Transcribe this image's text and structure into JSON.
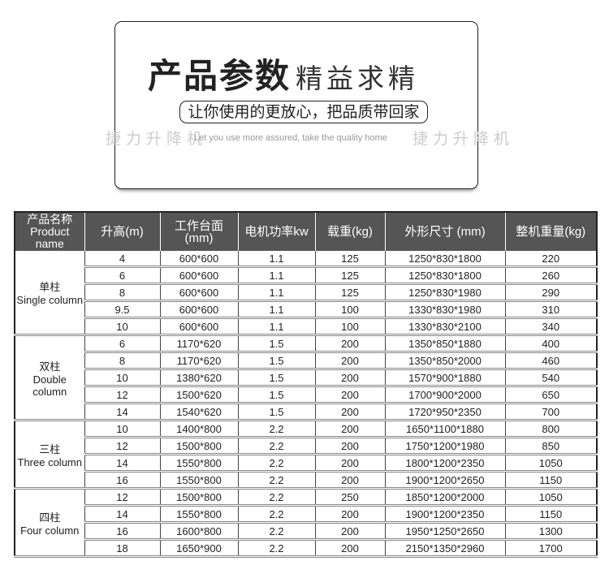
{
  "banner": {
    "title_bold": "产品参数",
    "title_light": "精益求精",
    "slogan": "让你使用的更放心，把品质带回家",
    "slogan_en": "Let you use more assured, take the quality home",
    "watermark": "捷力升降机"
  },
  "table": {
    "headers": {
      "name_cn": "产品名称",
      "name_en": "Product name",
      "height": "升高(m)",
      "platform": "工作台面(mm)",
      "power": "电机功率kw",
      "load": "载重(kg)",
      "size": "外形尺寸 (mm)",
      "weight": "整机重量(kg)"
    },
    "groups": [
      {
        "name_cn": "单柱",
        "name_en": "Single column",
        "rows": [
          [
            "4",
            "600*600",
            "1.1",
            "125",
            "1250*830*1800",
            "220"
          ],
          [
            "6",
            "600*600",
            "1.1",
            "125",
            "1250*830*1800",
            "260"
          ],
          [
            "8",
            "600*600",
            "1.1",
            "125",
            "1250*830*1980",
            "290"
          ],
          [
            "9.5",
            "600*600",
            "1.1",
            "100",
            "1330*830*1980",
            "310"
          ],
          [
            "10",
            "600*600",
            "1.1",
            "100",
            "1330*830*2100",
            "340"
          ]
        ]
      },
      {
        "name_cn": "双柱",
        "name_en": "Double column",
        "rows": [
          [
            "6",
            "1170*620",
            "1.5",
            "200",
            "1350*850*1880",
            "400"
          ],
          [
            "8",
            "1170*620",
            "1.5",
            "200",
            "1350*850*2000",
            "460"
          ],
          [
            "10",
            "1380*620",
            "1.5",
            "200",
            "1570*900*1880",
            "540"
          ],
          [
            "12",
            "1500*620",
            "1.5",
            "200",
            "1700*900*2000",
            "650"
          ],
          [
            "14",
            "1540*620",
            "1.5",
            "200",
            "1720*950*2350",
            "700"
          ]
        ]
      },
      {
        "name_cn": "三柱",
        "name_en": "Three column",
        "rows": [
          [
            "10",
            "1400*800",
            "2.2",
            "200",
            "1650*1100*1880",
            "800"
          ],
          [
            "12",
            "1500*800",
            "2.2",
            "200",
            "1750*1200*1980",
            "850"
          ],
          [
            "14",
            "1550*800",
            "2.2",
            "200",
            "1800*1200*2350",
            "1050"
          ],
          [
            "16",
            "1550*800",
            "2.2",
            "200",
            "1900*1200*2650",
            "1150"
          ]
        ]
      },
      {
        "name_cn": "四柱",
        "name_en": "Four column",
        "rows": [
          [
            "12",
            "1500*800",
            "2.2",
            "250",
            "1850*1200*2000",
            "1050"
          ],
          [
            "14",
            "1550*800",
            "2.2",
            "200",
            "1900*1200*2350",
            "1150"
          ],
          [
            "16",
            "1600*800",
            "2.2",
            "200",
            "1950*1250*2650",
            "1300"
          ],
          [
            "18",
            "1650*900",
            "2.2",
            "200",
            "2150*1350*2960",
            "1700"
          ]
        ]
      }
    ]
  }
}
